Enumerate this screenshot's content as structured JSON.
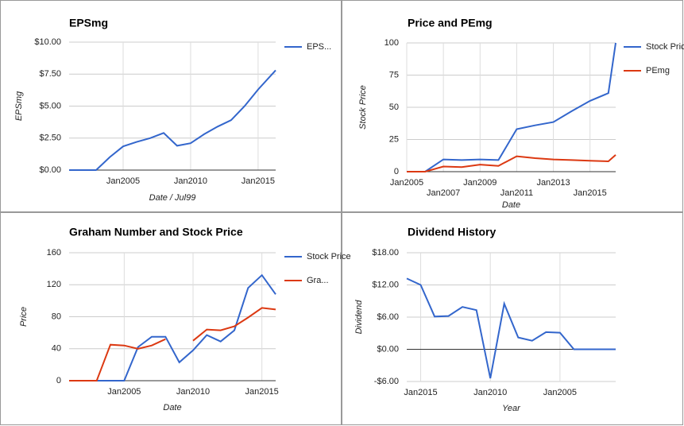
{
  "chart_data": [
    {
      "type": "line",
      "title": "EPSmg",
      "xlabel": "Date / Jul99",
      "ylabel": "EPSmg",
      "x": [
        2001,
        2002,
        2003,
        2004,
        2005,
        2006,
        2007,
        2008,
        2009,
        2010,
        2011,
        2012,
        2013,
        2014,
        2015,
        2016.3
      ],
      "series": [
        {
          "name": "EPS...",
          "color": "#3366cc",
          "values": [
            0,
            0,
            0,
            1.0,
            1.85,
            2.2,
            2.5,
            2.9,
            1.9,
            2.1,
            2.8,
            3.4,
            3.9,
            5.0,
            6.3,
            7.8
          ]
        }
      ],
      "xlim": [
        2001,
        2016.3
      ],
      "xticks": [
        {
          "value": 2005,
          "label": "Jan2005"
        },
        {
          "value": 2010,
          "label": "Jan2010"
        },
        {
          "value": 2015,
          "label": "Jan2015"
        }
      ],
      "ylim": [
        0,
        10
      ],
      "yticks": [
        {
          "value": 0,
          "label": "$0.00"
        },
        {
          "value": 2.5,
          "label": "$2.50"
        },
        {
          "value": 5,
          "label": "$5.00"
        },
        {
          "value": 7.5,
          "label": "$7.50"
        },
        {
          "value": 10,
          "label": "$10.00"
        }
      ],
      "grid": true,
      "legend": "right"
    },
    {
      "type": "line",
      "title": "Price and PEmg",
      "xlabel": "Date",
      "ylabel": "Stock Price",
      "x": [
        2005,
        2006,
        2007,
        2008,
        2009,
        2010,
        2011,
        2012,
        2013,
        2014,
        2015,
        2016,
        2016.4
      ],
      "series": [
        {
          "name": "Stock Price",
          "color": "#3366cc",
          "values": [
            0,
            0,
            9.5,
            9,
            9.5,
            9,
            33,
            36,
            38.5,
            47,
            55,
            61,
            100
          ]
        },
        {
          "name": "PEmg",
          "color": "#dc3912",
          "values": [
            0,
            0,
            4,
            3.5,
            5.5,
            4.5,
            12,
            10.5,
            9.5,
            9,
            8.5,
            8,
            13
          ]
        }
      ],
      "xlim": [
        2005,
        2016.4
      ],
      "xticks": [
        {
          "value": 2005,
          "label": "Jan2005"
        },
        {
          "value": 2007,
          "label": "Jan2007"
        },
        {
          "value": 2009,
          "label": "Jan2009"
        },
        {
          "value": 2011,
          "label": "Jan2011"
        },
        {
          "value": 2013,
          "label": "Jan2013"
        },
        {
          "value": 2015,
          "label": "Jan2015"
        }
      ],
      "ylim": [
        0,
        100
      ],
      "yticks": [
        0,
        25,
        50,
        75,
        100
      ],
      "grid": true,
      "legend": "right"
    },
    {
      "type": "line",
      "title": "Graham Number and Stock Price",
      "xlabel": "Date",
      "ylabel": "Price",
      "x": [
        2001,
        2002,
        2003,
        2004,
        2005,
        2006,
        2007,
        2008,
        2009,
        2010,
        2011,
        2012,
        2013,
        2014,
        2015,
        2016
      ],
      "series": [
        {
          "name": "Stock Price",
          "color": "#3366cc",
          "values": [
            0,
            0,
            0,
            0,
            0,
            42,
            55,
            55,
            23,
            38,
            57,
            49,
            63,
            116,
            132,
            108
          ]
        },
        {
          "name": "Gra...",
          "color": "#dc3912",
          "values": [
            0,
            0,
            0,
            45,
            44,
            40,
            44,
            52,
            null,
            50,
            64,
            63,
            68,
            79,
            91,
            89
          ]
        }
      ],
      "xlim": [
        2001,
        2016
      ],
      "xticks": [
        {
          "value": 2005,
          "label": "Jan2005"
        },
        {
          "value": 2010,
          "label": "Jan2010"
        },
        {
          "value": 2015,
          "label": "Jan2015"
        }
      ],
      "ylim": [
        0,
        160
      ],
      "yticks": [
        0,
        40,
        80,
        120,
        160
      ],
      "grid": true,
      "legend": "right"
    },
    {
      "type": "line",
      "title": "Dividend History",
      "xlabel": "Year",
      "ylabel": "Dividend",
      "x": [
        2016,
        2015,
        2014,
        2013,
        2012,
        2011,
        2010,
        2009,
        2008,
        2007,
        2006,
        2005,
        2004,
        2003,
        2002,
        2001
      ],
      "series": [
        {
          "color": "#3366cc",
          "values": [
            13.2,
            12,
            6.1,
            6.2,
            7.9,
            7.3,
            -5.4,
            8.5,
            2.2,
            1.6,
            3.2,
            3.1,
            0,
            0,
            0,
            0
          ]
        }
      ],
      "xlim": [
        2016,
        2001
      ],
      "xticks": [
        {
          "value": 2015,
          "label": "Jan2015"
        },
        {
          "value": 2010,
          "label": "Jan2010"
        },
        {
          "value": 2005,
          "label": "Jan2005"
        }
      ],
      "ylim": [
        -6,
        18
      ],
      "yticks": [
        {
          "value": -6,
          "label": "-$6.00"
        },
        {
          "value": 0,
          "label": "$0.00"
        },
        {
          "value": 6,
          "label": "$6.00"
        },
        {
          "value": 12,
          "label": "$12.00"
        },
        {
          "value": 18,
          "label": "$18.00"
        }
      ],
      "grid": true
    }
  ]
}
